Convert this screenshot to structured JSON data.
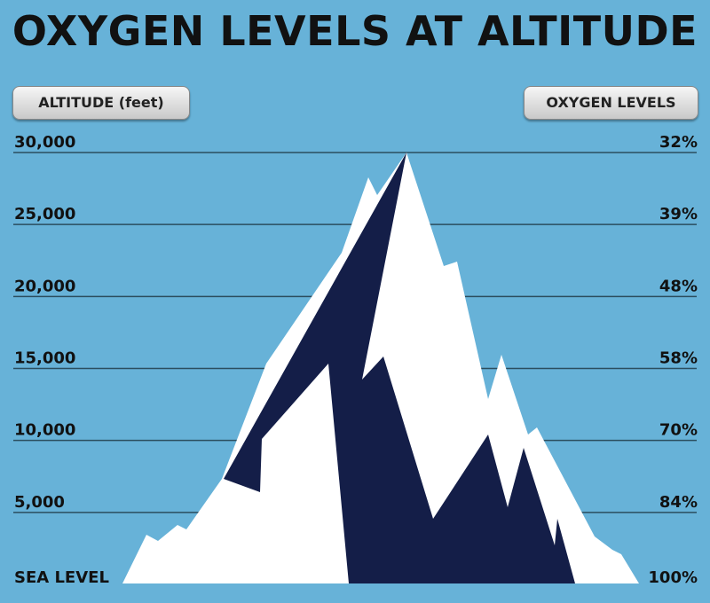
{
  "header": {
    "title": "OXYGEN LEVELS AT ALTITUDE"
  },
  "left_button": "ALTITUDE (feet)",
  "right_button": "OXYGEN LEVELS",
  "rows": [
    {
      "altitude": "30,000",
      "oxygen": "32%"
    },
    {
      "altitude": "25,000",
      "oxygen": "39%"
    },
    {
      "altitude": "20,000",
      "oxygen": "48%"
    },
    {
      "altitude": "15,000",
      "oxygen": "58%"
    },
    {
      "altitude": "10,000",
      "oxygen": "70%"
    },
    {
      "altitude": "5,000",
      "oxygen": "84%"
    },
    {
      "altitude": "SEA LEVEL",
      "oxygen": "100%"
    }
  ]
}
